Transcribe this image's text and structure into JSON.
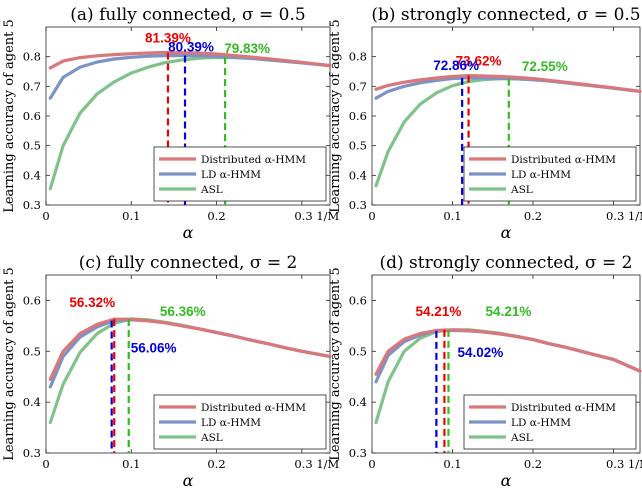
{
  "figure": {
    "ylabel": "Learning accuracy of agent 5",
    "xlabel": "α",
    "legend_labels": [
      "Distributed α-HMM",
      "LD α-HMM",
      "ASL"
    ],
    "series_colors": [
      "#d9777a",
      "#7b93c5",
      "#7fc28a"
    ],
    "annotation_colors": [
      "#ee0000",
      "#0000dd",
      "#33bb22"
    ],
    "xtick_labels": [
      "0",
      "0.1",
      "0.2",
      "0.3 1/M"
    ]
  },
  "chart_data": [
    {
      "type": "line",
      "title": "(a) fully connected, σ = 0.5",
      "xlim": [
        0,
        0.333
      ],
      "ylim": [
        0.3,
        0.9
      ],
      "yticks": [
        0.3,
        0.4,
        0.5,
        0.6,
        0.7,
        0.8
      ],
      "xticks": [
        0,
        0.1,
        0.2,
        0.3
      ],
      "legend": "bottom-right",
      "x": [
        0.005,
        0.02,
        0.04,
        0.06,
        0.08,
        0.1,
        0.12,
        0.14,
        0.16,
        0.18,
        0.2,
        0.22,
        0.24,
        0.26,
        0.28,
        0.3,
        0.333
      ],
      "series": [
        {
          "name": "Distributed α-HMM",
          "values": [
            0.762,
            0.785,
            0.797,
            0.803,
            0.807,
            0.81,
            0.8125,
            0.8139,
            0.8135,
            0.812,
            0.809,
            0.804,
            0.799,
            0.793,
            0.787,
            0.781,
            0.77
          ]
        },
        {
          "name": "LD α-HMM",
          "values": [
            0.66,
            0.73,
            0.765,
            0.782,
            0.792,
            0.798,
            0.802,
            0.8035,
            0.8039,
            0.8025,
            0.801,
            0.798,
            0.794,
            0.789,
            0.784,
            0.779,
            0.77
          ]
        },
        {
          "name": "ASL",
          "values": [
            0.355,
            0.5,
            0.61,
            0.675,
            0.715,
            0.745,
            0.765,
            0.78,
            0.789,
            0.795,
            0.7975,
            0.797,
            0.795,
            0.79,
            0.785,
            0.78,
            0.77
          ]
        }
      ],
      "peaks": [
        {
          "series": "Distributed α-HMM",
          "x": 0.143,
          "y": 0.8139,
          "label": "81.39%"
        },
        {
          "series": "LD α-HMM",
          "x": 0.163,
          "y": 0.8039,
          "label": "80.39%"
        },
        {
          "series": "ASL",
          "x": 0.21,
          "y": 0.7983,
          "label": "79.83%"
        }
      ]
    },
    {
      "type": "line",
      "title": "(b) strongly connected, σ = 0.5",
      "xlim": [
        0,
        0.333
      ],
      "ylim": [
        0.3,
        0.9
      ],
      "yticks": [
        0.3,
        0.4,
        0.5,
        0.6,
        0.7,
        0.8
      ],
      "xticks": [
        0,
        0.1,
        0.2,
        0.3
      ],
      "legend": "bottom-right",
      "x": [
        0.005,
        0.02,
        0.04,
        0.06,
        0.08,
        0.1,
        0.12,
        0.14,
        0.16,
        0.18,
        0.2,
        0.22,
        0.24,
        0.26,
        0.28,
        0.3,
        0.333
      ],
      "series": [
        {
          "name": "Distributed α-HMM",
          "values": [
            0.69,
            0.703,
            0.714,
            0.722,
            0.728,
            0.733,
            0.7362,
            0.735,
            0.733,
            0.73,
            0.726,
            0.72,
            0.714,
            0.708,
            0.701,
            0.695,
            0.683
          ]
        },
        {
          "name": "LD α-HMM",
          "values": [
            0.66,
            0.683,
            0.7,
            0.712,
            0.72,
            0.7265,
            0.7286,
            0.728,
            0.727,
            0.725,
            0.722,
            0.718,
            0.712,
            0.706,
            0.7,
            0.694,
            0.683
          ]
        },
        {
          "name": "ASL",
          "values": [
            0.365,
            0.48,
            0.58,
            0.64,
            0.678,
            0.702,
            0.716,
            0.723,
            0.7255,
            0.7255,
            0.723,
            0.719,
            0.713,
            0.707,
            0.7,
            0.694,
            0.683
          ]
        }
      ],
      "peaks": [
        {
          "series": "Distributed α-HMM",
          "x": 0.12,
          "y": 0.7362,
          "label": "73.62%"
        },
        {
          "series": "LD α-HMM",
          "x": 0.112,
          "y": 0.7286,
          "label": "72.86%"
        },
        {
          "series": "ASL",
          "x": 0.17,
          "y": 0.7255,
          "label": "72.55%"
        }
      ]
    },
    {
      "type": "line",
      "title": "(c) fully connected, σ = 2",
      "xlim": [
        0,
        0.333
      ],
      "ylim": [
        0.3,
        0.65
      ],
      "yticks": [
        0.3,
        0.4,
        0.5,
        0.6
      ],
      "xticks": [
        0,
        0.1,
        0.2,
        0.3
      ],
      "legend": "bottom-right",
      "x": [
        0.005,
        0.02,
        0.04,
        0.06,
        0.08,
        0.1,
        0.12,
        0.14,
        0.16,
        0.18,
        0.2,
        0.22,
        0.24,
        0.26,
        0.28,
        0.3,
        0.333
      ],
      "series": [
        {
          "name": "Distributed α-HMM",
          "values": [
            0.445,
            0.5,
            0.535,
            0.553,
            0.5632,
            0.563,
            0.56,
            0.556,
            0.55,
            0.544,
            0.537,
            0.53,
            0.522,
            0.515,
            0.507,
            0.5,
            0.49
          ]
        },
        {
          "name": "LD α-HMM",
          "values": [
            0.43,
            0.49,
            0.528,
            0.548,
            0.5606,
            0.562,
            0.56,
            0.556,
            0.55,
            0.544,
            0.537,
            0.53,
            0.522,
            0.515,
            0.507,
            0.5,
            0.49
          ]
        },
        {
          "name": "ASL",
          "values": [
            0.36,
            0.435,
            0.498,
            0.535,
            0.555,
            0.5636,
            0.562,
            0.557,
            0.551,
            0.544,
            0.537,
            0.53,
            0.522,
            0.515,
            0.507,
            0.5,
            0.49
          ]
        }
      ],
      "peaks": [
        {
          "series": "Distributed α-HMM",
          "x": 0.08,
          "y": 0.5632,
          "label": "56.32%"
        },
        {
          "series": "LD α-HMM",
          "x": 0.077,
          "y": 0.5606,
          "label": "56.06%"
        },
        {
          "series": "ASL",
          "x": 0.097,
          "y": 0.5636,
          "label": "56.36%"
        }
      ]
    },
    {
      "type": "line",
      "title": "(d) strongly connected, σ = 2",
      "xlim": [
        0,
        0.333
      ],
      "ylim": [
        0.3,
        0.65
      ],
      "yticks": [
        0.3,
        0.4,
        0.5,
        0.6
      ],
      "xticks": [
        0,
        0.1,
        0.2,
        0.3
      ],
      "legend": "bottom-right",
      "x": [
        0.005,
        0.02,
        0.04,
        0.06,
        0.08,
        0.1,
        0.12,
        0.14,
        0.16,
        0.18,
        0.2,
        0.22,
        0.24,
        0.26,
        0.28,
        0.3,
        0.333
      ],
      "series": [
        {
          "name": "Distributed α-HMM",
          "values": [
            0.455,
            0.5,
            0.524,
            0.535,
            0.541,
            0.5421,
            0.541,
            0.538,
            0.534,
            0.529,
            0.523,
            0.515,
            0.508,
            0.5,
            0.492,
            0.484,
            0.461
          ]
        },
        {
          "name": "LD α-HMM",
          "values": [
            0.44,
            0.492,
            0.519,
            0.532,
            0.5402,
            0.541,
            0.54,
            0.538,
            0.534,
            0.529,
            0.523,
            0.515,
            0.508,
            0.5,
            0.492,
            0.484,
            0.461
          ]
        },
        {
          "name": "ASL",
          "values": [
            0.36,
            0.44,
            0.5,
            0.526,
            0.539,
            0.5421,
            0.542,
            0.539,
            0.535,
            0.529,
            0.523,
            0.515,
            0.508,
            0.5,
            0.492,
            0.484,
            0.461
          ]
        }
      ],
      "peaks": [
        {
          "series": "Distributed α-HMM",
          "x": 0.09,
          "y": 0.5421,
          "label": "54.21%"
        },
        {
          "series": "LD α-HMM",
          "x": 0.08,
          "y": 0.5402,
          "label": "54.02%"
        },
        {
          "series": "ASL",
          "x": 0.095,
          "y": 0.5421,
          "label": "54.21%"
        }
      ]
    }
  ]
}
